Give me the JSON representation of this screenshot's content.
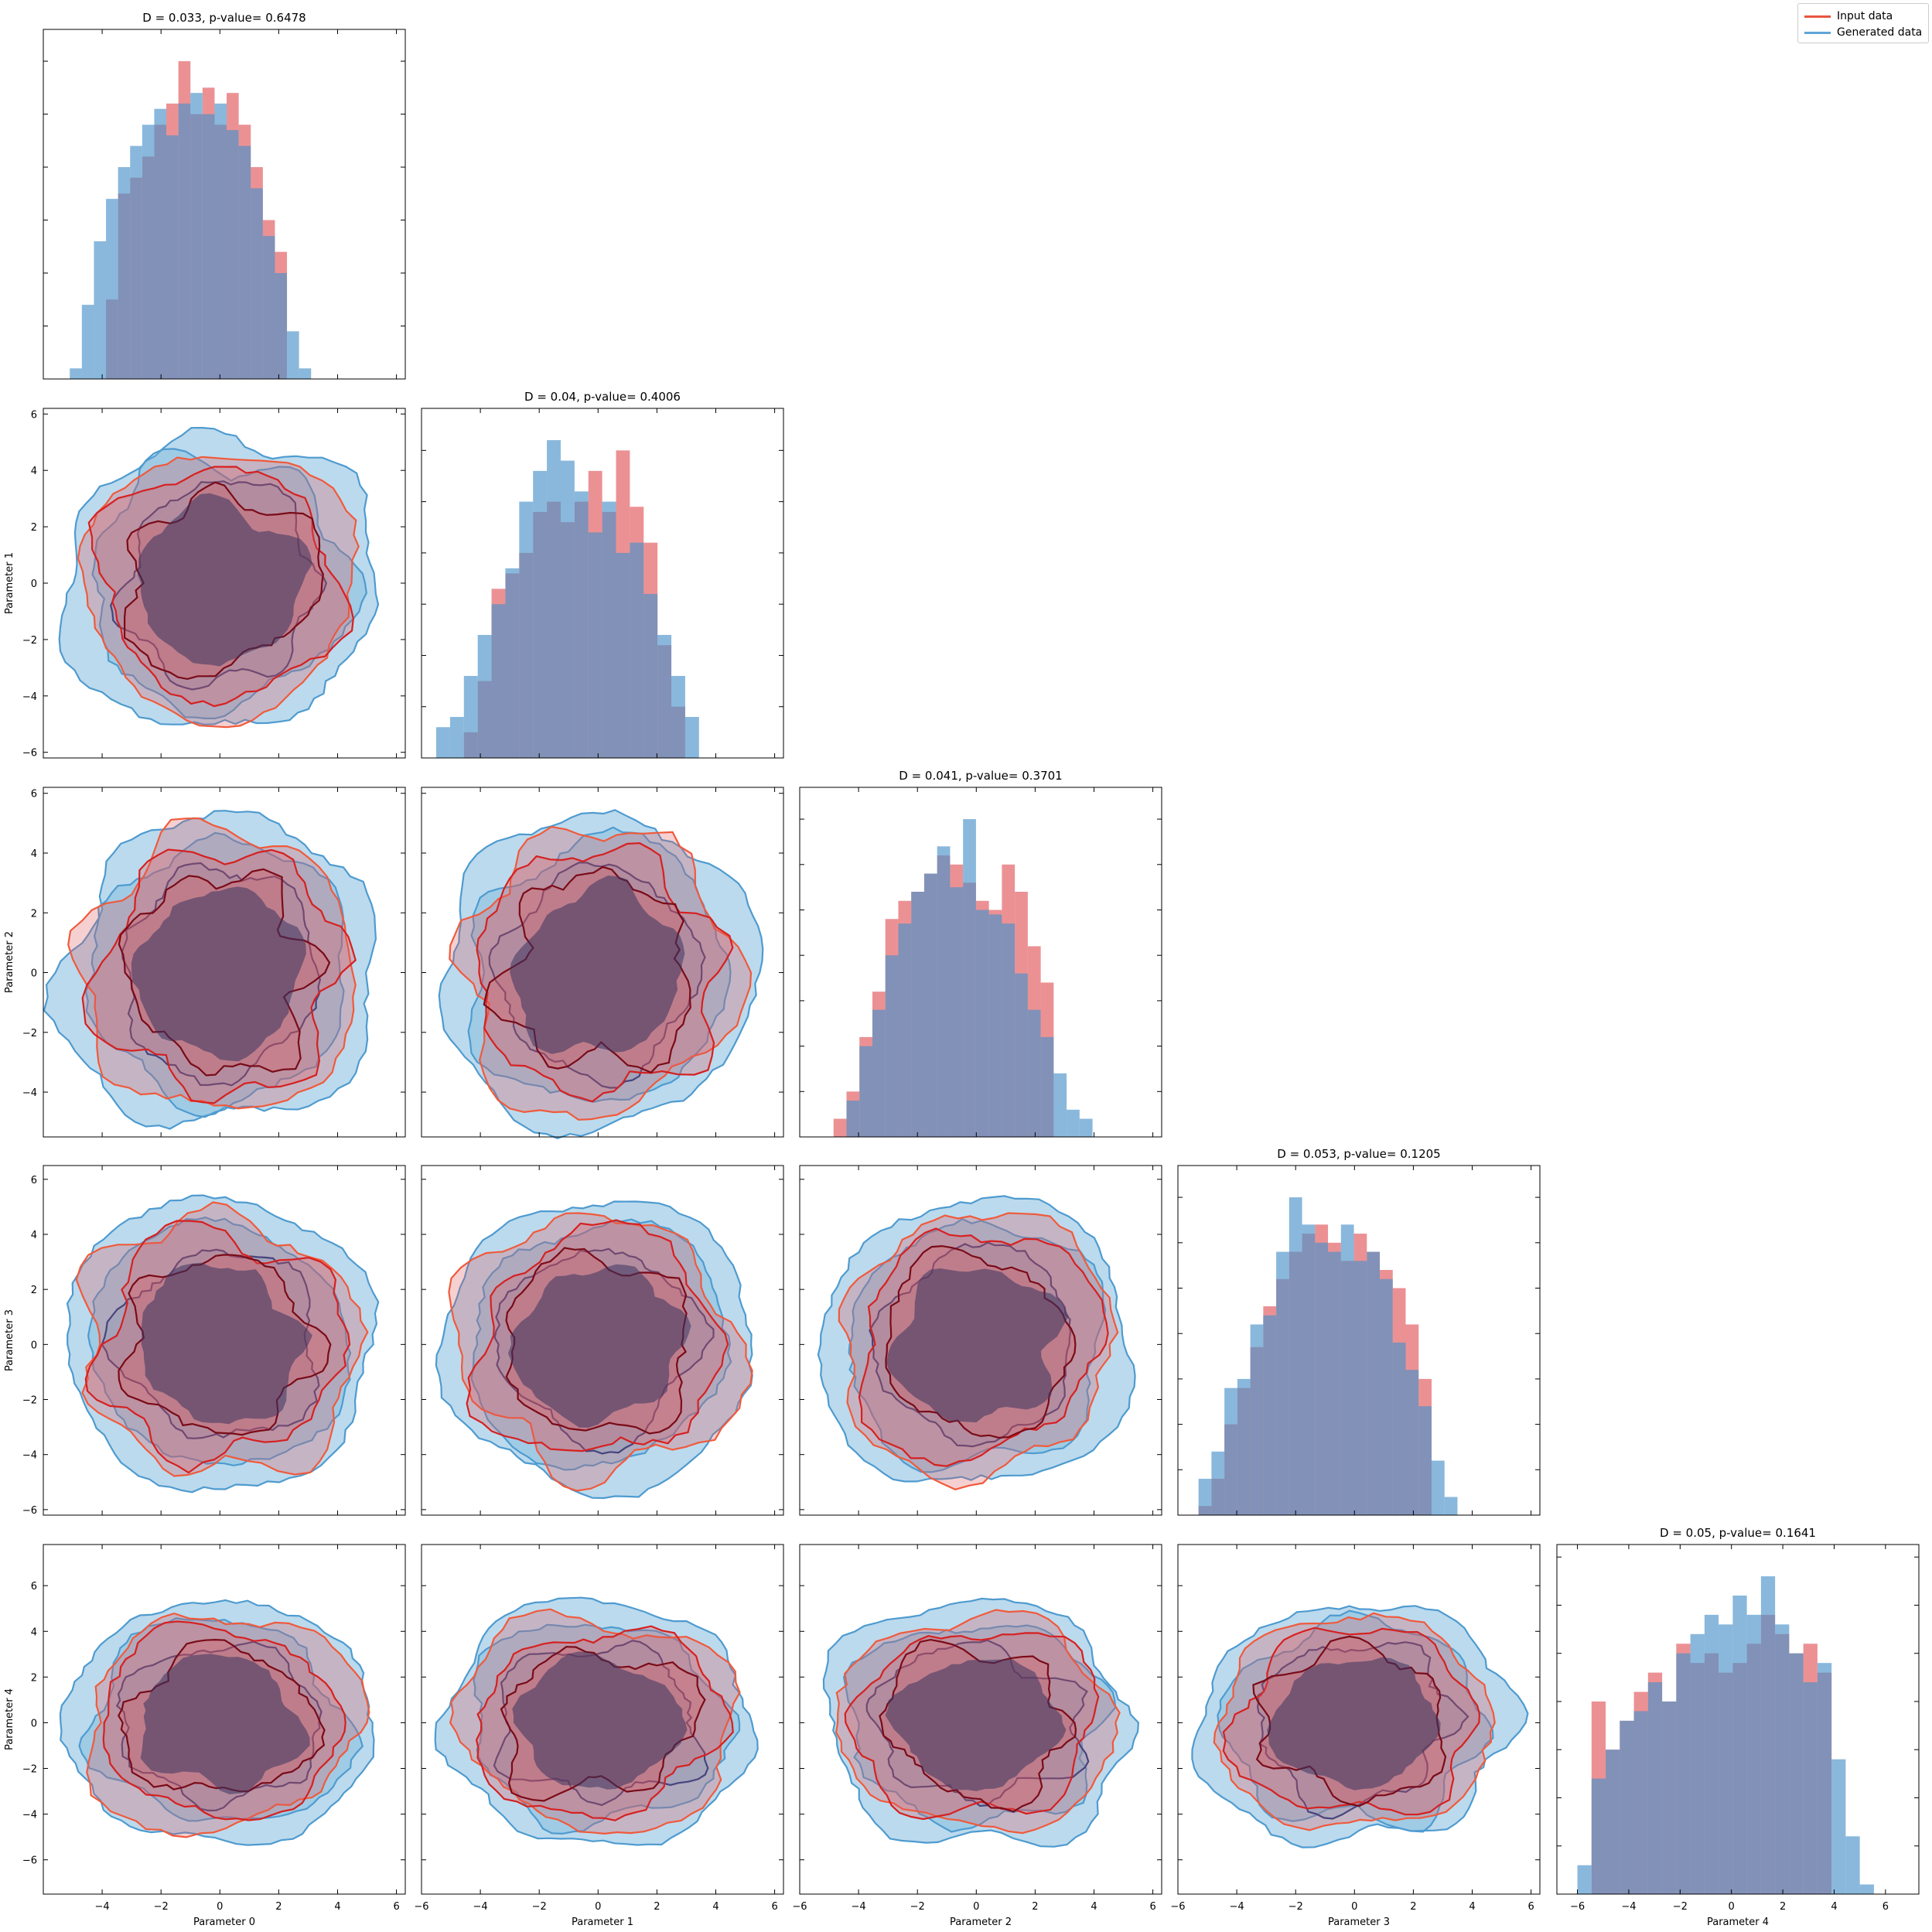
{
  "legend": {
    "items": [
      {
        "label": "Input data",
        "color": "#e8553f"
      },
      {
        "label": "Generated data",
        "color": "#5fa6d6"
      }
    ]
  },
  "colors": {
    "input_fill": "#e0565a",
    "generated_fill": "#4a92c9",
    "input_dark": "#7a0b18",
    "generated_dark": "#0c3d8a"
  },
  "chart_data": {
    "type": "corner-plot",
    "parameters": [
      "Parameter 0",
      "Parameter 1",
      "Parameter 2",
      "Parameter 3",
      "Parameter 4"
    ],
    "diagonal": [
      {
        "title": "D = 0.033, p-value= 0.6478",
        "xlim": [
          -6,
          6.3
        ],
        "bin_start": -5.1,
        "bin_width": 0.41,
        "input": [
          0,
          0,
          0,
          15,
          35,
          38,
          42,
          48,
          52,
          60,
          50,
          55,
          48,
          54,
          48,
          40,
          30,
          24,
          0,
          0,
          0
        ],
        "generated": [
          2,
          14,
          26,
          34,
          40,
          44,
          48,
          51,
          46,
          52,
          54,
          50,
          52,
          47,
          44,
          36,
          27,
          20,
          9,
          2,
          0
        ]
      },
      {
        "title": "D = 0.04, p-value= 0.4006",
        "xlim": [
          -6,
          6.3
        ],
        "bin_start": -5.5,
        "bin_width": 0.47,
        "input": [
          0,
          0,
          5,
          15,
          33,
          36,
          40,
          48,
          50,
          46,
          50,
          56,
          48,
          60,
          49,
          42,
          22,
          10,
          0,
          0
        ],
        "generated": [
          6,
          8,
          16,
          24,
          30,
          37,
          50,
          56,
          62,
          58,
          52,
          44,
          50,
          40,
          42,
          32,
          24,
          16,
          8,
          0
        ]
      },
      {
        "title": "D = 0.041, p-value= 0.3701",
        "xlim": [
          -6,
          6.3
        ],
        "bin_start": -4.85,
        "bin_width": 0.44,
        "input": [
          4,
          10,
          22,
          32,
          48,
          52,
          54,
          58,
          62,
          60,
          56,
          52,
          50,
          60,
          54,
          42,
          34,
          0,
          0,
          0,
          0
        ],
        "generated": [
          0,
          8,
          20,
          28,
          40,
          47,
          54,
          58,
          64,
          55,
          70,
          50,
          49,
          47,
          36,
          28,
          22,
          14,
          6,
          4,
          0
        ]
      },
      {
        "title": "D = 0.053, p-value= 0.1205",
        "xlim": [
          -6,
          6.3
        ],
        "bin_start": -5.3,
        "bin_width": 0.44,
        "input": [
          2,
          8,
          20,
          28,
          37,
          46,
          52,
          58,
          62,
          64,
          60,
          56,
          62,
          58,
          54,
          50,
          42,
          30,
          0,
          0,
          0
        ],
        "generated": [
          8,
          14,
          28,
          30,
          42,
          44,
          58,
          70,
          64,
          60,
          58,
          64,
          56,
          58,
          52,
          38,
          32,
          24,
          12,
          4,
          0
        ]
      },
      {
        "title": "D = 0.05, p-value= 0.1641",
        "xlim": [
          -6.8,
          7.3
        ],
        "bin_start": -6.0,
        "bin_width": 0.55,
        "input": [
          0,
          40,
          30,
          36,
          42,
          46,
          40,
          52,
          48,
          50,
          46,
          48,
          52,
          58,
          54,
          50,
          52,
          46,
          0,
          0,
          0
        ],
        "generated": [
          6,
          24,
          30,
          36,
          38,
          44,
          40,
          50,
          54,
          58,
          56,
          62,
          58,
          66,
          56,
          50,
          44,
          48,
          28,
          12,
          2
        ]
      }
    ],
    "offdiagonal_axes": {
      "ylim_rows": [
        null,
        [
          -6.2,
          6.2
        ],
        [
          -5.5,
          6.2
        ],
        [
          -6.2,
          6.5
        ],
        [
          -7.5,
          7.8
        ]
      ],
      "ytick_rows": [
        [],
        [
          -6,
          -4,
          -2,
          0,
          2,
          4,
          6
        ],
        [
          -4,
          -2,
          0,
          2,
          4,
          6
        ],
        [
          -6,
          -4,
          -2,
          0,
          2,
          4,
          6
        ],
        [
          -6,
          -4,
          -2,
          0,
          2,
          4,
          6
        ]
      ],
      "xticks": [
        [
          -4,
          -2,
          0,
          2,
          4,
          6
        ],
        [
          -6,
          -4,
          -2,
          0,
          2,
          4,
          6
        ],
        [
          -6,
          -4,
          -2,
          0,
          2,
          4,
          6
        ],
        [
          -6,
          -4,
          -2,
          0,
          2,
          4,
          6
        ],
        [
          -6,
          -4,
          -2,
          0,
          2,
          4,
          6
        ]
      ],
      "contour_levels_input": [
        {
          "radius": 4.7,
          "role": "outer"
        },
        {
          "radius": 4.1,
          "role": "mid"
        },
        {
          "radius": 3.2,
          "role": "inner"
        }
      ],
      "contour_levels_generated": [
        {
          "radius": 5.3,
          "role": "outer"
        },
        {
          "radius": 4.4,
          "role": "mid"
        },
        {
          "radius": 3.4,
          "role": "inner"
        }
      ]
    },
    "grid": false,
    "legend_position": "top-right"
  }
}
